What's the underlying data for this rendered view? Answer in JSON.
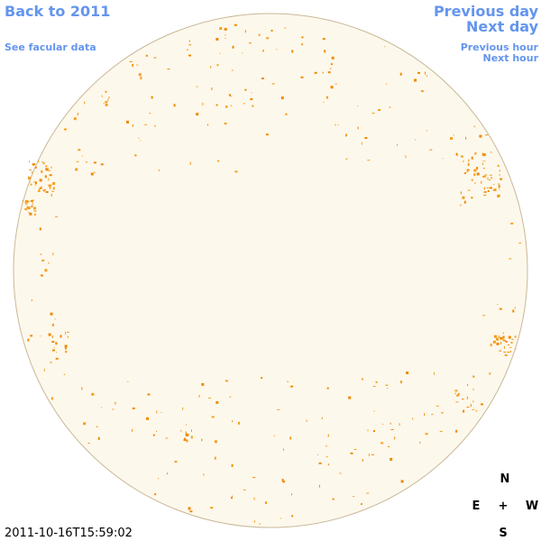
{
  "header": {
    "back_link": "Back to 2011",
    "facular_link": "See facular data",
    "previous_day": "Previous day",
    "next_day": "Next day",
    "previous_hour": "Previous hour",
    "next_hour": "Next hour"
  },
  "timestamp": "2011-10-16T15:59:02",
  "compass": {
    "north": "N",
    "east": "E",
    "center": "+",
    "west": "W",
    "south": "S"
  }
}
